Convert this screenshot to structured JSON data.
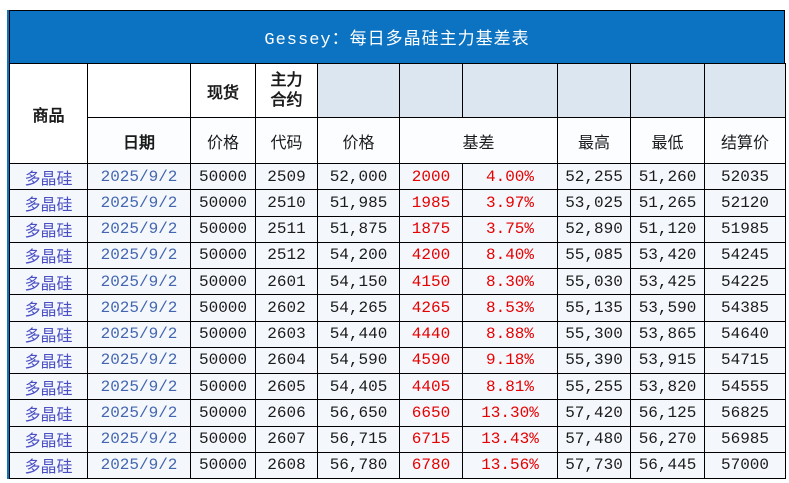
{
  "title": "Gessey：每日多晶硅主力基差表",
  "colors": {
    "title_bar_blue": "#0b73c2",
    "header_tint_blue": "#dce6f1",
    "basis_red": "#e60000",
    "commodity_text_blue": "#4a4fc4",
    "date_text_blue": "#4466b0"
  },
  "table": {
    "header": {
      "commodity": "商品",
      "date": "日期",
      "spot": "现货",
      "main_contract_line1": "主力",
      "main_contract_line2": "合约",
      "spot_price": "价格",
      "code": "代码",
      "price": "价格",
      "basis": "基差",
      "high": "最高",
      "low": "最低",
      "settle": "结算价"
    },
    "rows": [
      {
        "commodity": "多晶硅",
        "date": "2025/9/2",
        "spot": "50000",
        "code": "2509",
        "price": "52,000",
        "basis": "2000",
        "basis_pct": "4.00%",
        "high": "52,255",
        "low": "51,260",
        "settle": "52035"
      },
      {
        "commodity": "多晶硅",
        "date": "2025/9/2",
        "spot": "50000",
        "code": "2510",
        "price": "51,985",
        "basis": "1985",
        "basis_pct": "3.97%",
        "high": "53,025",
        "low": "51,265",
        "settle": "52120"
      },
      {
        "commodity": "多晶硅",
        "date": "2025/9/2",
        "spot": "50000",
        "code": "2511",
        "price": "51,875",
        "basis": "1875",
        "basis_pct": "3.75%",
        "high": "52,890",
        "low": "51,120",
        "settle": "51985"
      },
      {
        "commodity": "多晶硅",
        "date": "2025/9/2",
        "spot": "50000",
        "code": "2512",
        "price": "54,200",
        "basis": "4200",
        "basis_pct": "8.40%",
        "high": "55,085",
        "low": "53,420",
        "settle": "54245"
      },
      {
        "commodity": "多晶硅",
        "date": "2025/9/2",
        "spot": "50000",
        "code": "2601",
        "price": "54,150",
        "basis": "4150",
        "basis_pct": "8.30%",
        "high": "55,030",
        "low": "53,425",
        "settle": "54225"
      },
      {
        "commodity": "多晶硅",
        "date": "2025/9/2",
        "spot": "50000",
        "code": "2602",
        "price": "54,265",
        "basis": "4265",
        "basis_pct": "8.53%",
        "high": "55,135",
        "low": "53,590",
        "settle": "54385"
      },
      {
        "commodity": "多晶硅",
        "date": "2025/9/2",
        "spot": "50000",
        "code": "2603",
        "price": "54,440",
        "basis": "4440",
        "basis_pct": "8.88%",
        "high": "55,300",
        "low": "53,865",
        "settle": "54640"
      },
      {
        "commodity": "多晶硅",
        "date": "2025/9/2",
        "spot": "50000",
        "code": "2604",
        "price": "54,590",
        "basis": "4590",
        "basis_pct": "9.18%",
        "high": "55,390",
        "low": "53,915",
        "settle": "54715"
      },
      {
        "commodity": "多晶硅",
        "date": "2025/9/2",
        "spot": "50000",
        "code": "2605",
        "price": "54,405",
        "basis": "4405",
        "basis_pct": "8.81%",
        "high": "55,255",
        "low": "53,820",
        "settle": "54555"
      },
      {
        "commodity": "多晶硅",
        "date": "2025/9/2",
        "spot": "50000",
        "code": "2606",
        "price": "56,650",
        "basis": "6650",
        "basis_pct": "13.30%",
        "high": "57,420",
        "low": "56,125",
        "settle": "56825"
      },
      {
        "commodity": "多晶硅",
        "date": "2025/9/2",
        "spot": "50000",
        "code": "2607",
        "price": "56,715",
        "basis": "6715",
        "basis_pct": "13.43%",
        "high": "57,480",
        "low": "56,270",
        "settle": "56985"
      },
      {
        "commodity": "多晶硅",
        "date": "2025/9/2",
        "spot": "50000",
        "code": "2608",
        "price": "56,780",
        "basis": "6780",
        "basis_pct": "13.56%",
        "high": "57,730",
        "low": "56,445",
        "settle": "57000"
      }
    ]
  }
}
